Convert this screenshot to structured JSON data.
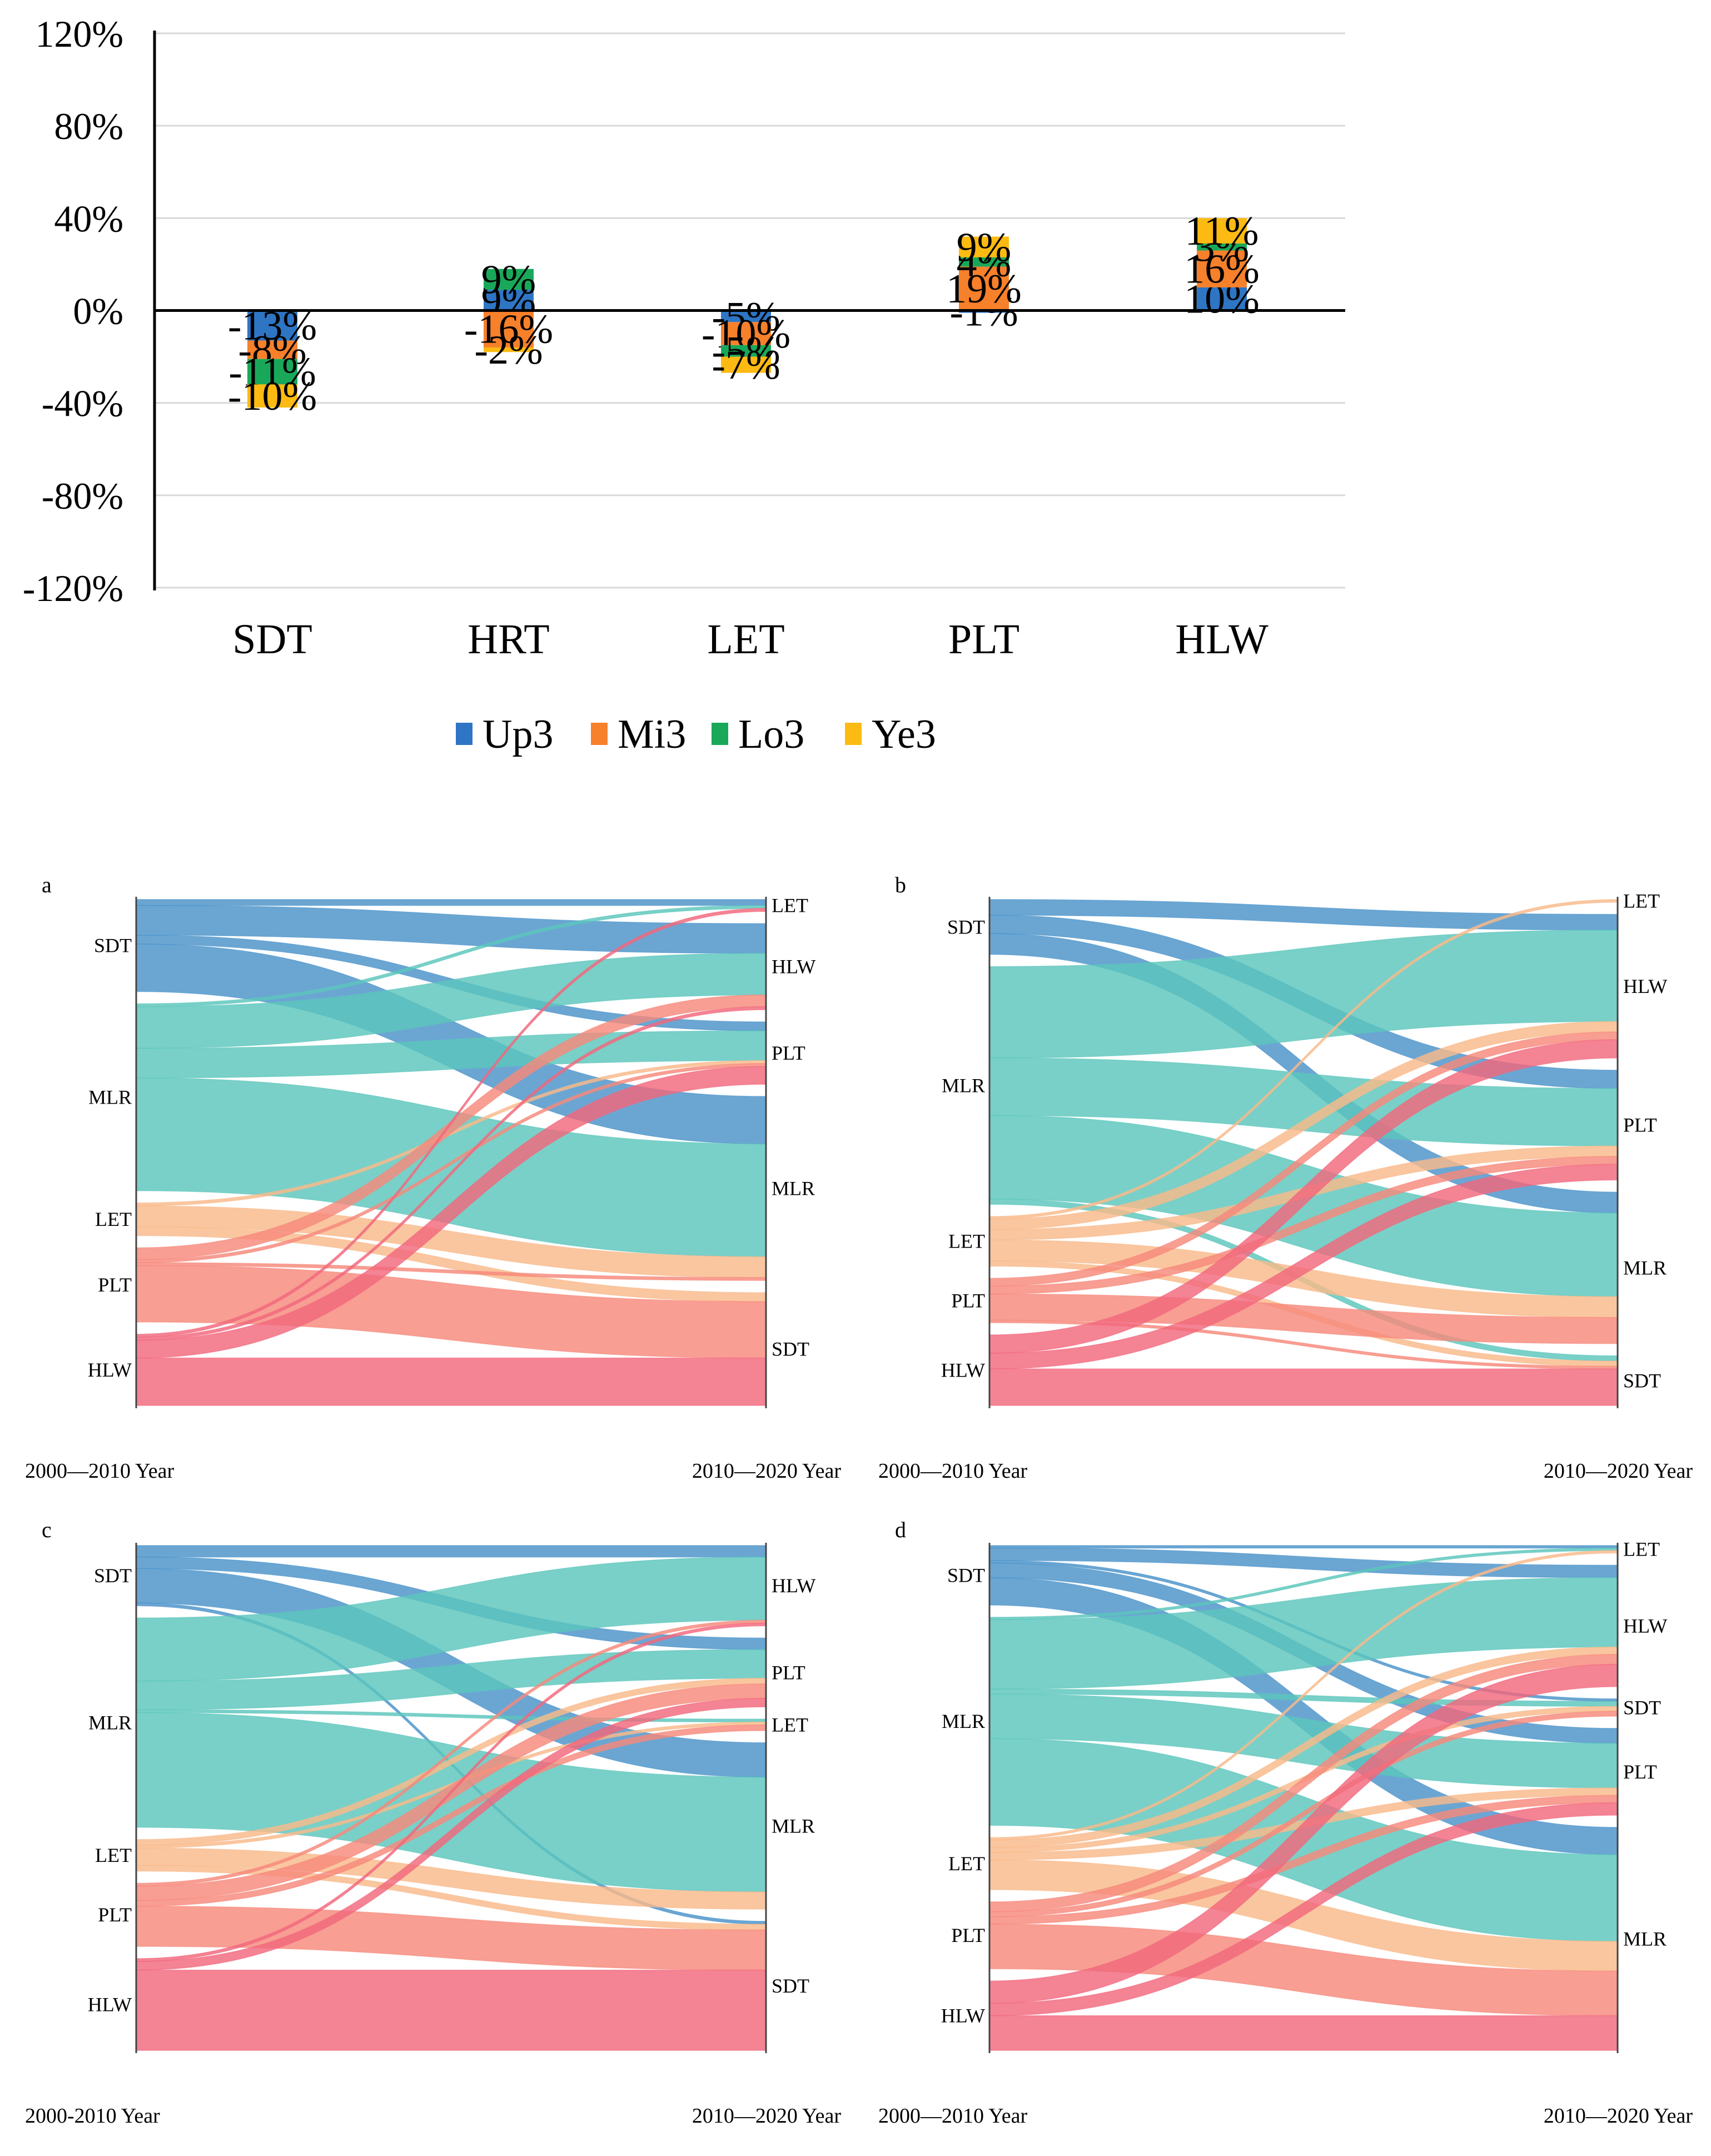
{
  "chart_data": [
    {
      "type": "bar",
      "stacked": true,
      "categories": [
        "SDT",
        "HRT",
        "LET",
        "PLT",
        "HLW"
      ],
      "ylim": [
        -1.2,
        1.2
      ],
      "yticks": [
        {
          "value": 1.2,
          "label": "120%"
        },
        {
          "value": 0.8,
          "label": "80%"
        },
        {
          "value": 0.4,
          "label": "40%"
        },
        {
          "value": 0.0,
          "label": "0%"
        },
        {
          "value": -0.4,
          "label": "-40%"
        },
        {
          "value": -0.8,
          "label": "-80%"
        },
        {
          "value": -1.2,
          "label": "-120%"
        }
      ],
      "grid": true,
      "legend": "bottom",
      "series": [
        {
          "name": "Up3",
          "color": "#2E75C4",
          "values": [
            -0.13,
            0.09,
            -0.05,
            -0.01,
            0.1
          ],
          "labels": [
            "-13%",
            "9%",
            "-5%",
            "-1%",
            "10%"
          ]
        },
        {
          "name": "Mi3",
          "color": "#F7802B",
          "values": [
            -0.08,
            -0.16,
            -0.1,
            0.19,
            0.16
          ],
          "labels": [
            "-8%",
            "-16%",
            "-10%",
            "19%",
            "16%"
          ]
        },
        {
          "name": "Lo3",
          "color": "#19A85A",
          "values": [
            -0.11,
            0.09,
            -0.05,
            0.04,
            0.03
          ],
          "labels": [
            "-11%",
            "9%",
            "-5%",
            "4%",
            "3%"
          ]
        },
        {
          "name": "Ye3",
          "color": "#FDBA12",
          "values": [
            -0.1,
            -0.02,
            -0.07,
            0.09,
            0.11
          ],
          "labels": [
            "-10%",
            "-2%",
            "-7%",
            "9%",
            "11%"
          ]
        }
      ]
    },
    {
      "type": "sankey",
      "panel": "a",
      "left_label": "2000—2010",
      "right_label": "2010—2020",
      "year_word": "Year",
      "left_nodes": [
        "SDT",
        "MLR",
        "LET",
        "PLT",
        "HLW"
      ],
      "right_nodes": [
        "LET",
        "HLW",
        "PLT",
        "MLR",
        "SDT"
      ],
      "flows": [
        [
          "SDT",
          "LET",
          2
        ],
        [
          "SDT",
          "HLW",
          10
        ],
        [
          "SDT",
          "PLT",
          3
        ],
        [
          "SDT",
          "MLR",
          16
        ],
        [
          "MLR",
          "LET",
          1
        ],
        [
          "MLR",
          "HLW",
          14
        ],
        [
          "MLR",
          "PLT",
          10
        ],
        [
          "MLR",
          "MLR",
          38
        ],
        [
          "LET",
          "MLR",
          7
        ],
        [
          "LET",
          "PLT",
          1
        ],
        [
          "LET",
          "SDT",
          3
        ],
        [
          "PLT",
          "HLW",
          4
        ],
        [
          "PLT",
          "MLR",
          1
        ],
        [
          "PLT",
          "PLT",
          1
        ],
        [
          "PLT",
          "SDT",
          19
        ],
        [
          "HLW",
          "HLW",
          1
        ],
        [
          "HLW",
          "PLT",
          6
        ],
        [
          "HLW",
          "SDT",
          16
        ],
        [
          "HLW",
          "LET",
          1
        ]
      ]
    },
    {
      "type": "sankey",
      "panel": "b",
      "left_label": "2000—2010",
      "right_label": "2010—2020",
      "year_word": "Year",
      "left_nodes": [
        "SDT",
        "MLR",
        "LET",
        "PLT",
        "HLW"
      ],
      "right_nodes": [
        "LET",
        "HLW",
        "PLT",
        "MLR",
        "SDT"
      ],
      "flows": [
        [
          "SDT",
          "HLW",
          6
        ],
        [
          "SDT",
          "PLT",
          7
        ],
        [
          "SDT",
          "MLR",
          8
        ],
        [
          "MLR",
          "HLW",
          35
        ],
        [
          "MLR",
          "PLT",
          22
        ],
        [
          "MLR",
          "MLR",
          32
        ],
        [
          "MLR",
          "SDT",
          2
        ],
        [
          "LET",
          "LET",
          1
        ],
        [
          "LET",
          "HLW",
          4
        ],
        [
          "LET",
          "PLT",
          4
        ],
        [
          "LET",
          "MLR",
          8
        ],
        [
          "LET",
          "SDT",
          2
        ],
        [
          "PLT",
          "HLW",
          3
        ],
        [
          "PLT",
          "PLT",
          3
        ],
        [
          "PLT",
          "MLR",
          10
        ],
        [
          "PLT",
          "SDT",
          1
        ],
        [
          "HLW",
          "HLW",
          7
        ],
        [
          "HLW",
          "PLT",
          6
        ],
        [
          "HLW",
          "SDT",
          14
        ]
      ]
    },
    {
      "type": "sankey",
      "panel": "c",
      "left_label": "2000-2010",
      "right_label": "2010—2020",
      "year_word": "Year",
      "left_nodes": [
        "SDT",
        "MLR",
        "LET",
        "PLT",
        "HLW"
      ],
      "right_nodes": [
        "HLW",
        "PLT",
        "LET",
        "MLR",
        "SDT"
      ],
      "flows": [
        [
          "SDT",
          "HLW",
          4
        ],
        [
          "SDT",
          "PLT",
          4
        ],
        [
          "SDT",
          "MLR",
          12
        ],
        [
          "SDT",
          "SDT",
          1
        ],
        [
          "MLR",
          "HLW",
          22
        ],
        [
          "MLR",
          "PLT",
          10
        ],
        [
          "MLR",
          "LET",
          1
        ],
        [
          "MLR",
          "MLR",
          40
        ],
        [
          "LET",
          "PLT",
          2
        ],
        [
          "LET",
          "LET",
          1
        ],
        [
          "LET",
          "MLR",
          6
        ],
        [
          "LET",
          "SDT",
          2
        ],
        [
          "PLT",
          "HLW",
          1
        ],
        [
          "PLT",
          "PLT",
          5
        ],
        [
          "PLT",
          "LET",
          2
        ],
        [
          "PLT",
          "SDT",
          14
        ],
        [
          "HLW",
          "HLW",
          1
        ],
        [
          "HLW",
          "PLT",
          3
        ],
        [
          "HLW",
          "SDT",
          28
        ]
      ]
    },
    {
      "type": "sankey",
      "panel": "d",
      "left_label": "2000—2010",
      "right_label": "2010—2020",
      "year_word": "Year",
      "left_nodes": [
        "SDT",
        "MLR",
        "LET",
        "PLT",
        "HLW"
      ],
      "right_nodes": [
        "LET",
        "HLW",
        "SDT",
        "PLT",
        "MLR"
      ],
      "flows": [
        [
          "SDT",
          "LET",
          1
        ],
        [
          "SDT",
          "HLW",
          5
        ],
        [
          "SDT",
          "SDT",
          1
        ],
        [
          "SDT",
          "PLT",
          6
        ],
        [
          "SDT",
          "MLR",
          11
        ],
        [
          "MLR",
          "LET",
          1
        ],
        [
          "MLR",
          "HLW",
          28
        ],
        [
          "MLR",
          "SDT",
          2
        ],
        [
          "MLR",
          "PLT",
          18
        ],
        [
          "MLR",
          "MLR",
          35
        ],
        [
          "LET",
          "LET",
          1
        ],
        [
          "LET",
          "HLW",
          3
        ],
        [
          "LET",
          "SDT",
          2
        ],
        [
          "LET",
          "PLT",
          3
        ],
        [
          "LET",
          "MLR",
          12
        ],
        [
          "PLT",
          "HLW",
          4
        ],
        [
          "PLT",
          "SDT",
          2
        ],
        [
          "PLT",
          "PLT",
          3
        ],
        [
          "PLT",
          "MLR",
          18
        ],
        [
          "HLW",
          "HLW",
          9
        ],
        [
          "HLW",
          "PLT",
          5
        ],
        [
          "HLW",
          "MLR",
          14
        ]
      ]
    }
  ],
  "node_colors": {
    "SDT": "#4A93C9",
    "MLR": "#5CC6BC",
    "LET": "#F9B98A",
    "PLT": "#F7897B",
    "HLW": "#F2687D"
  }
}
